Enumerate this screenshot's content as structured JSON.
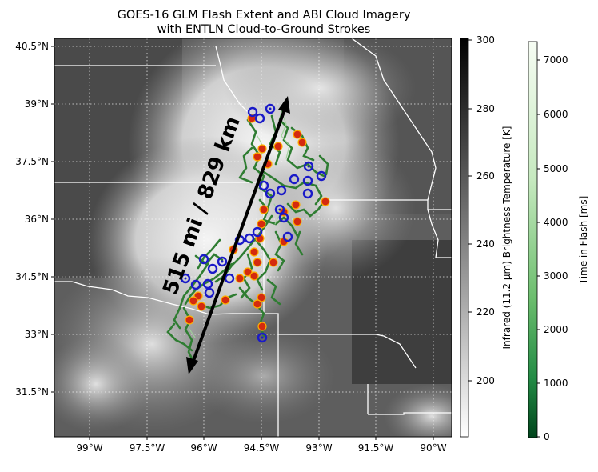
{
  "title_line1": "GOES-16 GLM Flash Extent and ABI Cloud Imagery",
  "title_line2": "with ENTLN Cloud-to-Ground Strokes",
  "lat_labels": [
    "40.5°N",
    "39°N",
    "37.5°N",
    "36°N",
    "34.5°N",
    "33°N",
    "31.5°N"
  ],
  "lon_labels": [
    "99°W",
    "97.5°W",
    "96°W",
    "94.5°W",
    "93°W",
    "91.5°W",
    "90°W"
  ],
  "annotation": "515 mi / 829 km",
  "colorbar_ir": {
    "label": "Infrared (11.2 µm) Brightness Temperature [K]",
    "ticks": [
      "300",
      "280",
      "260",
      "240",
      "220",
      "200"
    ]
  },
  "colorbar_flash": {
    "label": "Time in Flash [ms]",
    "ticks": [
      "7000",
      "6000",
      "5000",
      "4000",
      "3000",
      "2000",
      "1000",
      "0"
    ]
  },
  "colors": {
    "stroke_positive": "#d42a0f",
    "stroke_negative": "#1a1ac8",
    "flash_green": "#3c8a3a",
    "boundary": "#ffffff"
  }
}
